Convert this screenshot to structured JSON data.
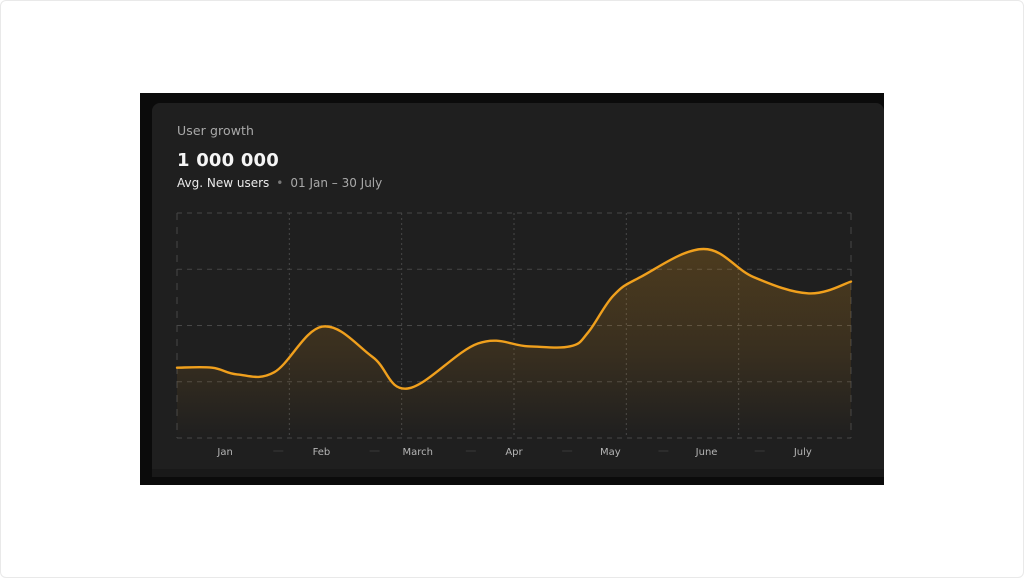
{
  "card": {
    "title": "User growth",
    "metric": "1 000 000",
    "metric_label": "Avg. New users",
    "separator": "•",
    "date_range": "01 Jan – 30 July"
  },
  "colors": {
    "line": "#f0a01d",
    "grid": "#474747",
    "card_bg": "#1f1f1f"
  },
  "chart_data": {
    "type": "area",
    "title": "",
    "xlabel": "",
    "ylabel": "",
    "grid": true,
    "curve": "smooth",
    "categories": [
      "Jan",
      "Feb",
      "March",
      "Apr",
      "May",
      "June",
      "July"
    ],
    "x": [
      0,
      0.35,
      0.6,
      0.97,
      1.45,
      1.95,
      2.3,
      3.0,
      3.5,
      3.92,
      4.1,
      4.35,
      4.62,
      5.25,
      5.75,
      6.3,
      6.72
    ],
    "y": [
      1.25,
      1.25,
      1.13,
      1.17,
      1.98,
      1.44,
      0.88,
      1.68,
      1.63,
      1.63,
      1.88,
      2.53,
      2.86,
      3.36,
      2.86,
      2.57,
      2.78
    ],
    "ylim": [
      0,
      4
    ],
    "xlim": [
      0,
      6.72
    ]
  }
}
